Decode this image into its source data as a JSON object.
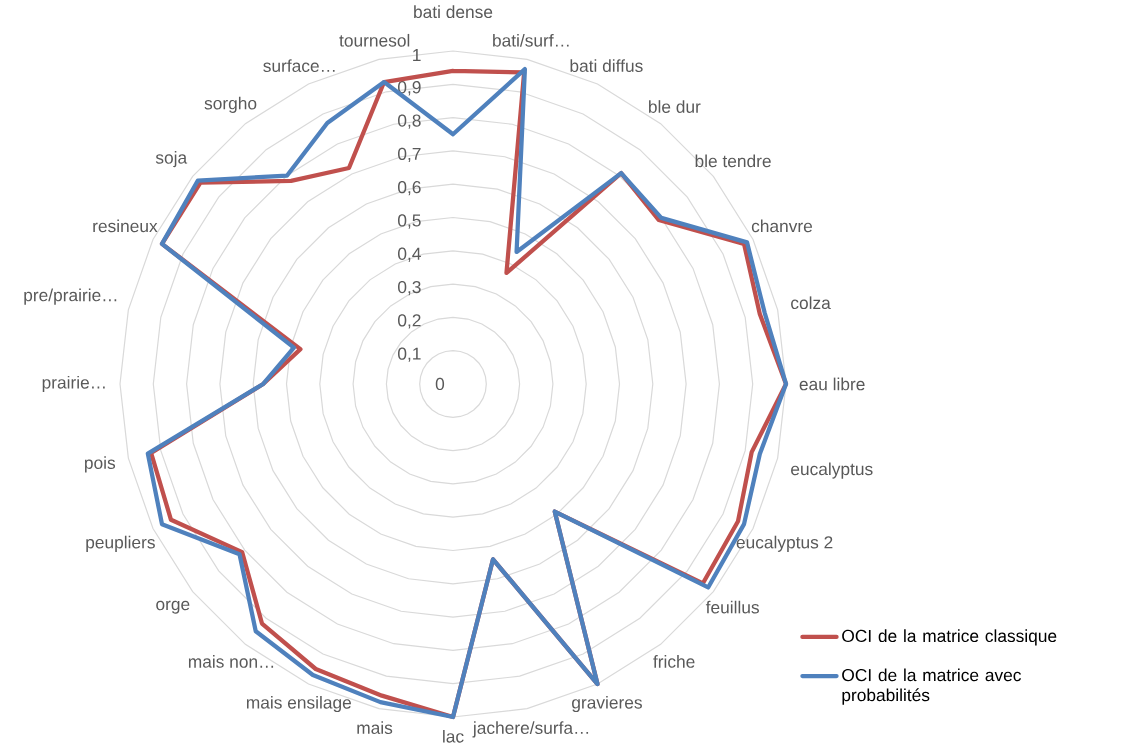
{
  "chart_data": {
    "type": "radar",
    "categories": [
      "bati dense",
      "bati/surf…",
      "bati diffus",
      "ble dur",
      "ble tendre",
      "chanvre",
      "colza",
      "eau libre",
      "eucalyptus",
      "eucalyptus 2",
      "feuillus",
      "friche",
      "gravieres",
      "jachere/surfa…",
      "lac",
      "mais",
      "mais ensilage",
      "mais non…",
      "orge",
      "peupliers",
      "pois",
      "prairie…",
      "pre/prairie…",
      "resineux",
      "soja",
      "sorgho",
      "surface…",
      "tournesol"
    ],
    "series": [
      {
        "name": "OCI de la matrice classique",
        "color": "#c0504d",
        "values": [
          0.94,
          0.96,
          0.37,
          0.81,
          0.79,
          0.97,
          0.945,
          1.0,
          0.92,
          0.95,
          0.96,
          0.49,
          1.0,
          0.54,
          1.0,
          0.96,
          0.95,
          0.92,
          0.81,
          0.94,
          0.93,
          0.57,
          0.47,
          0.97,
          0.97,
          0.78,
          0.72,
          0.93
        ]
      },
      {
        "name": "OCI de la matrice avec probabilités",
        "color": "#4f81bd",
        "values": [
          0.75,
          0.97,
          0.44,
          0.81,
          0.8,
          0.98,
          0.96,
          1.0,
          0.945,
          0.97,
          0.98,
          0.49,
          1.0,
          0.54,
          1.0,
          0.98,
          0.97,
          0.95,
          0.82,
          0.97,
          0.94,
          0.57,
          0.49,
          0.97,
          0.98,
          0.8,
          0.87,
          0.93
        ]
      }
    ],
    "ylim": [
      0,
      1
    ],
    "yticks": [
      {
        "value": 0,
        "label": "0"
      },
      {
        "value": 0.1,
        "label": "0,1"
      },
      {
        "value": 0.2,
        "label": "0,2"
      },
      {
        "value": 0.3,
        "label": "0,3"
      },
      {
        "value": 0.4,
        "label": "0,4"
      },
      {
        "value": 0.5,
        "label": "0,5"
      },
      {
        "value": 0.6,
        "label": "0,6"
      },
      {
        "value": 0.7,
        "label": "0,7"
      },
      {
        "value": 0.8,
        "label": "0,8"
      },
      {
        "value": 0.9,
        "label": "0,9"
      },
      1
    ],
    "grid": true,
    "legend": "bottom right"
  }
}
